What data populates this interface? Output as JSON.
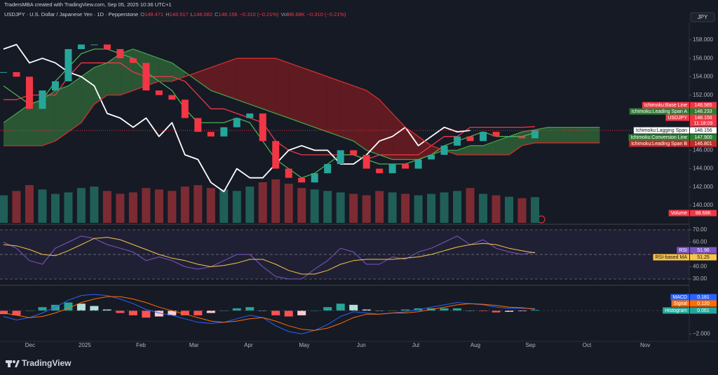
{
  "header": {
    "attribution": "TradersMBA created with TradingView.com, Sep 05, 2025 10:36 UTC+1",
    "symbol": "USDJPY · U.S. Dollar / Japanese Yen · 1D · Pepperstone",
    "ohlc": [
      {
        "label": "O",
        "value": 148.471
      },
      {
        "label": "H",
        "value": 148.517
      },
      {
        "label": "L",
        "value": 148.082
      },
      {
        "label": "C",
        "value": 148.156
      }
    ],
    "change": "−0.310 (−0.21%)",
    "volume": {
      "label": "Vol",
      "value": "88.68K",
      "change": "−0.310 (−0.21%)"
    },
    "currency": "JPY"
  },
  "chart_data": [
    {
      "type": "candlestick",
      "ylim": [
        138.1,
        159.9
      ],
      "yticks": [
        {
          "value": 140,
          "label": "140.000"
        },
        {
          "value": 142,
          "label": "142.000"
        },
        {
          "value": 144,
          "label": "144.000"
        },
        {
          "value": 146,
          "label": "146.000"
        },
        {
          "value": 148,
          "label": "148.000"
        },
        {
          "value": 150,
          "label": "150.000"
        },
        {
          "value": 152,
          "label": "152.000"
        },
        {
          "value": 154,
          "label": "154.000"
        },
        {
          "value": 156,
          "label": "156.000"
        },
        {
          "value": 158,
          "label": "158.000"
        }
      ],
      "y2lim": [
        0,
        690
      ],
      "grid": false,
      "cloud_colors": {
        "up": "rgba(67,160,71,0.45)",
        "down": "rgba(183,28,28,0.45)"
      },
      "series": [
        {
          "name": "USDJPY",
          "type": "candlestick",
          "color": "#f23645",
          "up_color": "#26a69a",
          "down_color": "#f23645",
          "countdown": "11:18:09",
          "values": [
            154.5,
            154,
            150.5,
            152.5,
            153.5,
            157,
            157.5,
            157.5,
            157,
            156,
            155.5,
            152.5,
            152,
            151.5,
            149.5,
            148,
            147.5,
            148.5,
            149.5,
            150,
            147,
            144,
            143,
            142.5,
            143.5,
            144.5,
            146,
            145.5,
            144,
            143.5,
            144.5,
            144,
            145,
            145.5,
            146.5,
            147.5,
            147,
            148,
            147.5,
            147.5,
            147.3,
            148.156
          ]
        },
        {
          "name": "Ichimoku:Base Line",
          "type": "line",
          "color": "#f23645",
          "values": [
            151.5,
            151.5,
            152,
            152,
            152,
            154,
            155.5,
            155.5,
            155.5,
            155.5,
            154.5,
            154,
            154,
            154,
            153.5,
            152,
            150.5,
            150.5,
            150,
            149.5,
            149,
            147,
            146,
            145.5,
            145.5,
            145.5,
            145.5,
            145.5,
            145,
            145.5,
            145.5,
            145.5,
            145.5,
            146.5,
            147.5,
            147.5,
            148.5,
            148.5,
            148.5,
            148.5,
            148.5,
            148.565
          ]
        },
        {
          "name": "Ichimoku:Leading Span A",
          "type": "line",
          "color": "#43a047",
          "values": [
            149,
            150,
            151,
            151.5,
            152.5,
            153,
            154,
            155,
            155.5,
            156.5,
            157,
            156.5,
            156,
            155.5,
            154.5,
            153.5,
            152.5,
            152,
            151.5,
            151,
            150.5,
            150,
            149.5,
            149,
            148.5,
            148,
            147.5,
            147,
            146,
            145.5,
            145,
            145,
            145,
            145.5,
            146,
            146,
            146.5,
            146.5,
            147,
            147.5,
            148,
            148.233,
            148.5,
            148.5,
            148.5,
            148.5,
            148.5
          ]
        },
        {
          "name": "Ichimoku:Lagging Span",
          "type": "line",
          "color": "#ffffff",
          "values": [
            157,
            157.5,
            155.5,
            156,
            155.5,
            154.5,
            154,
            153,
            150,
            149.5,
            148.5,
            149.5,
            147.5,
            149,
            145.5,
            145,
            142.5,
            141.5,
            144,
            143,
            143,
            144.5,
            146,
            146.5,
            146,
            146,
            144.5,
            144.5,
            145.5,
            147,
            147.5,
            148.5,
            146.5,
            147.5,
            148.5,
            148,
            148.156
          ]
        },
        {
          "name": "Ichimoku:Conversion Line",
          "type": "line",
          "color": "#4caf50",
          "values": [
            153,
            152,
            151,
            151.5,
            153.5,
            155,
            156.5,
            157,
            157,
            156.5,
            156,
            154.5,
            153.5,
            152.5,
            150.5,
            149,
            149,
            149,
            149.5,
            149,
            147,
            145,
            144,
            143,
            143.5,
            144.5,
            145.5,
            145.5,
            145,
            144.5,
            144.5,
            144.5,
            145,
            145.5,
            146.5,
            147,
            147.5,
            148,
            147.5,
            147.5,
            147.5,
            147.9
          ],
          "value_labels": [
            null,
            null,
            null,
            null,
            null,
            null,
            null,
            null,
            null,
            null,
            null,
            null,
            null,
            null,
            null,
            null,
            null,
            null,
            null,
            null,
            null,
            null,
            null,
            null,
            null,
            null,
            null,
            null,
            null,
            null,
            null,
            null,
            null,
            null,
            null,
            null,
            null,
            null,
            null,
            null,
            null,
            "147.900"
          ]
        },
        {
          "name": "Ichimoku:Leading Span B",
          "type": "line",
          "color": "#d32f2f",
          "values": [
            146.5,
            146.5,
            146.5,
            146.5,
            147,
            148,
            149,
            151,
            152,
            152,
            152.5,
            153,
            153.5,
            153.5,
            154,
            154.5,
            155,
            155.5,
            156,
            156,
            156,
            156,
            155.5,
            155,
            154.5,
            154,
            153.5,
            153,
            152.5,
            151.5,
            150,
            148.5,
            147.5,
            146.5,
            146,
            145.5,
            145.5,
            145.5,
            145.5,
            145.5,
            146.5,
            146.801,
            146.801,
            146.801,
            146.801,
            146.801,
            146.801
          ]
        },
        {
          "name": "Volume",
          "type": "bar",
          "axis": "y2",
          "color": "#f23645",
          "up_color": "#1f5f57",
          "down_color": "#7d2b33",
          "values": [
            95,
            110,
            130,
            115,
            100,
            105,
            120,
            125,
            110,
            100,
            105,
            120,
            115,
            110,
            125,
            130,
            120,
            115,
            110,
            125,
            140,
            150,
            135,
            120,
            115,
            110,
            105,
            100,
            95,
            110,
            105,
            100,
            95,
            100,
            105,
            110,
            120,
            100,
            95,
            90,
            85,
            88.68
          ],
          "value_labels": [
            null,
            null,
            null,
            null,
            null,
            null,
            null,
            null,
            null,
            null,
            null,
            null,
            null,
            null,
            null,
            null,
            null,
            null,
            null,
            null,
            null,
            null,
            null,
            null,
            null,
            null,
            null,
            null,
            null,
            null,
            null,
            null,
            null,
            null,
            null,
            null,
            null,
            null,
            null,
            null,
            null,
            "88.68K"
          ]
        }
      ]
    },
    {
      "type": "line",
      "ylim": [
        26.6,
        73.4
      ],
      "yticks": [
        {
          "value": 30,
          "label": "30.00"
        },
        {
          "value": 40,
          "label": "40.00"
        },
        {
          "value": 50,
          "label": "50.00"
        },
        {
          "value": 60,
          "label": "60.00"
        },
        {
          "value": 70,
          "label": "70.00"
        }
      ],
      "band": [
        30,
        70
      ],
      "midline": 50,
      "series": [
        {
          "name": "RSI",
          "color": "#7e57c2",
          "values": [
            60,
            55,
            45,
            42,
            55,
            60,
            65,
            63,
            58,
            55,
            52,
            45,
            48,
            45,
            40,
            38,
            40,
            45,
            50,
            50,
            40,
            32,
            30,
            30,
            38,
            45,
            55,
            52,
            42,
            42,
            48,
            46,
            52,
            55,
            60,
            65,
            58,
            62,
            55,
            52,
            50,
            51.96
          ]
        },
        {
          "name": "RSI-based MA",
          "color": "#f7c548",
          "values": [
            58,
            57,
            54,
            50,
            49,
            53,
            58,
            63,
            64,
            62,
            58,
            54,
            50,
            47,
            45,
            42,
            40,
            41,
            43,
            46,
            46,
            42,
            37,
            34,
            34,
            37,
            42,
            45,
            46,
            46,
            46,
            47,
            48,
            50,
            53,
            56,
            58,
            59,
            58,
            55,
            53,
            51.25
          ]
        }
      ]
    },
    {
      "type": "line",
      "ylim": [
        -2.4,
        2.0
      ],
      "yticks": [
        {
          "value": -2,
          "label": "−2.000"
        }
      ],
      "xlim": [
        -0.27,
        52.9
      ],
      "xticks": [
        {
          "value": 2.05,
          "label": "Dec"
        },
        {
          "value": 6.27,
          "label": "2025"
        },
        {
          "value": 10.6,
          "label": "Feb"
        },
        {
          "value": 14.7,
          "label": "Mar"
        },
        {
          "value": 18.9,
          "label": "Apr"
        },
        {
          "value": 23.2,
          "label": "May"
        },
        {
          "value": 27.6,
          "label": "Jun"
        },
        {
          "value": 31.8,
          "label": "Jul"
        },
        {
          "value": 36.4,
          "label": "Aug"
        },
        {
          "value": 40.65,
          "label": "Sep"
        },
        {
          "value": 45.0,
          "label": "Oct"
        },
        {
          "value": 49.5,
          "label": "Nov"
        }
      ],
      "series": [
        {
          "name": "MACD",
          "type": "line",
          "color": "#2962ff",
          "values": [
            -0.5,
            -0.8,
            -0.6,
            -0.2,
            0.3,
            0.9,
            1.3,
            1.4,
            1.3,
            1.0,
            0.6,
            0.1,
            -0.2,
            -0.4,
            -0.7,
            -1.0,
            -1.1,
            -1.0,
            -0.7,
            -0.4,
            -0.6,
            -1.3,
            -1.8,
            -2.0,
            -1.7,
            -1.2,
            -0.5,
            -0.1,
            -0.2,
            -0.3,
            -0.2,
            -0.1,
            0.1,
            0.3,
            0.5,
            0.7,
            0.6,
            0.5,
            0.3,
            0.2,
            0.2,
            0.181
          ]
        },
        {
          "name": "Signal",
          "type": "line",
          "color": "#ff6d00",
          "values": [
            -0.2,
            -0.4,
            -0.6,
            -0.5,
            -0.2,
            0.2,
            0.7,
            1.0,
            1.2,
            1.2,
            1.0,
            0.7,
            0.3,
            0,
            -0.3,
            -0.6,
            -0.9,
            -1.0,
            -0.9,
            -0.7,
            -0.6,
            -0.9,
            -1.3,
            -1.6,
            -1.7,
            -1.5,
            -1.1,
            -0.6,
            -0.3,
            -0.3,
            -0.2,
            -0.2,
            -0.1,
            0.1,
            0.3,
            0.5,
            0.6,
            0.55,
            0.45,
            0.3,
            0.25,
            0.12
          ],
          "value_labels": [
            null,
            null,
            null,
            null,
            null,
            null,
            null,
            null,
            null,
            null,
            null,
            null,
            null,
            null,
            null,
            null,
            null,
            null,
            null,
            null,
            null,
            null,
            null,
            null,
            null,
            null,
            null,
            null,
            null,
            null,
            null,
            null,
            null,
            null,
            null,
            null,
            null,
            null,
            null,
            null,
            null,
            "0.120"
          ]
        },
        {
          "name": "Histogram",
          "type": "bar",
          "color": "#26a69a",
          "up_color": "#26a69a",
          "up_fade": "#b2dfdb",
          "down_color": "#ff5252",
          "down_fade": "#ffcdd2",
          "values": [
            -0.3,
            -0.4,
            0,
            0.3,
            0.5,
            0.7,
            0.6,
            0.4,
            0.1,
            -0.2,
            -0.4,
            -0.6,
            -0.5,
            -0.4,
            -0.4,
            -0.4,
            -0.2,
            0,
            0.2,
            0.3,
            0,
            -0.4,
            -0.5,
            -0.4,
            0,
            0.3,
            0.6,
            0.5,
            0.1,
            0,
            0,
            0.1,
            0.2,
            0.2,
            0.2,
            0.2,
            0,
            -0.05,
            -0.15,
            -0.1,
            -0.05,
            0.061
          ]
        }
      ]
    }
  ],
  "footer": {
    "brand": "TradingView"
  }
}
